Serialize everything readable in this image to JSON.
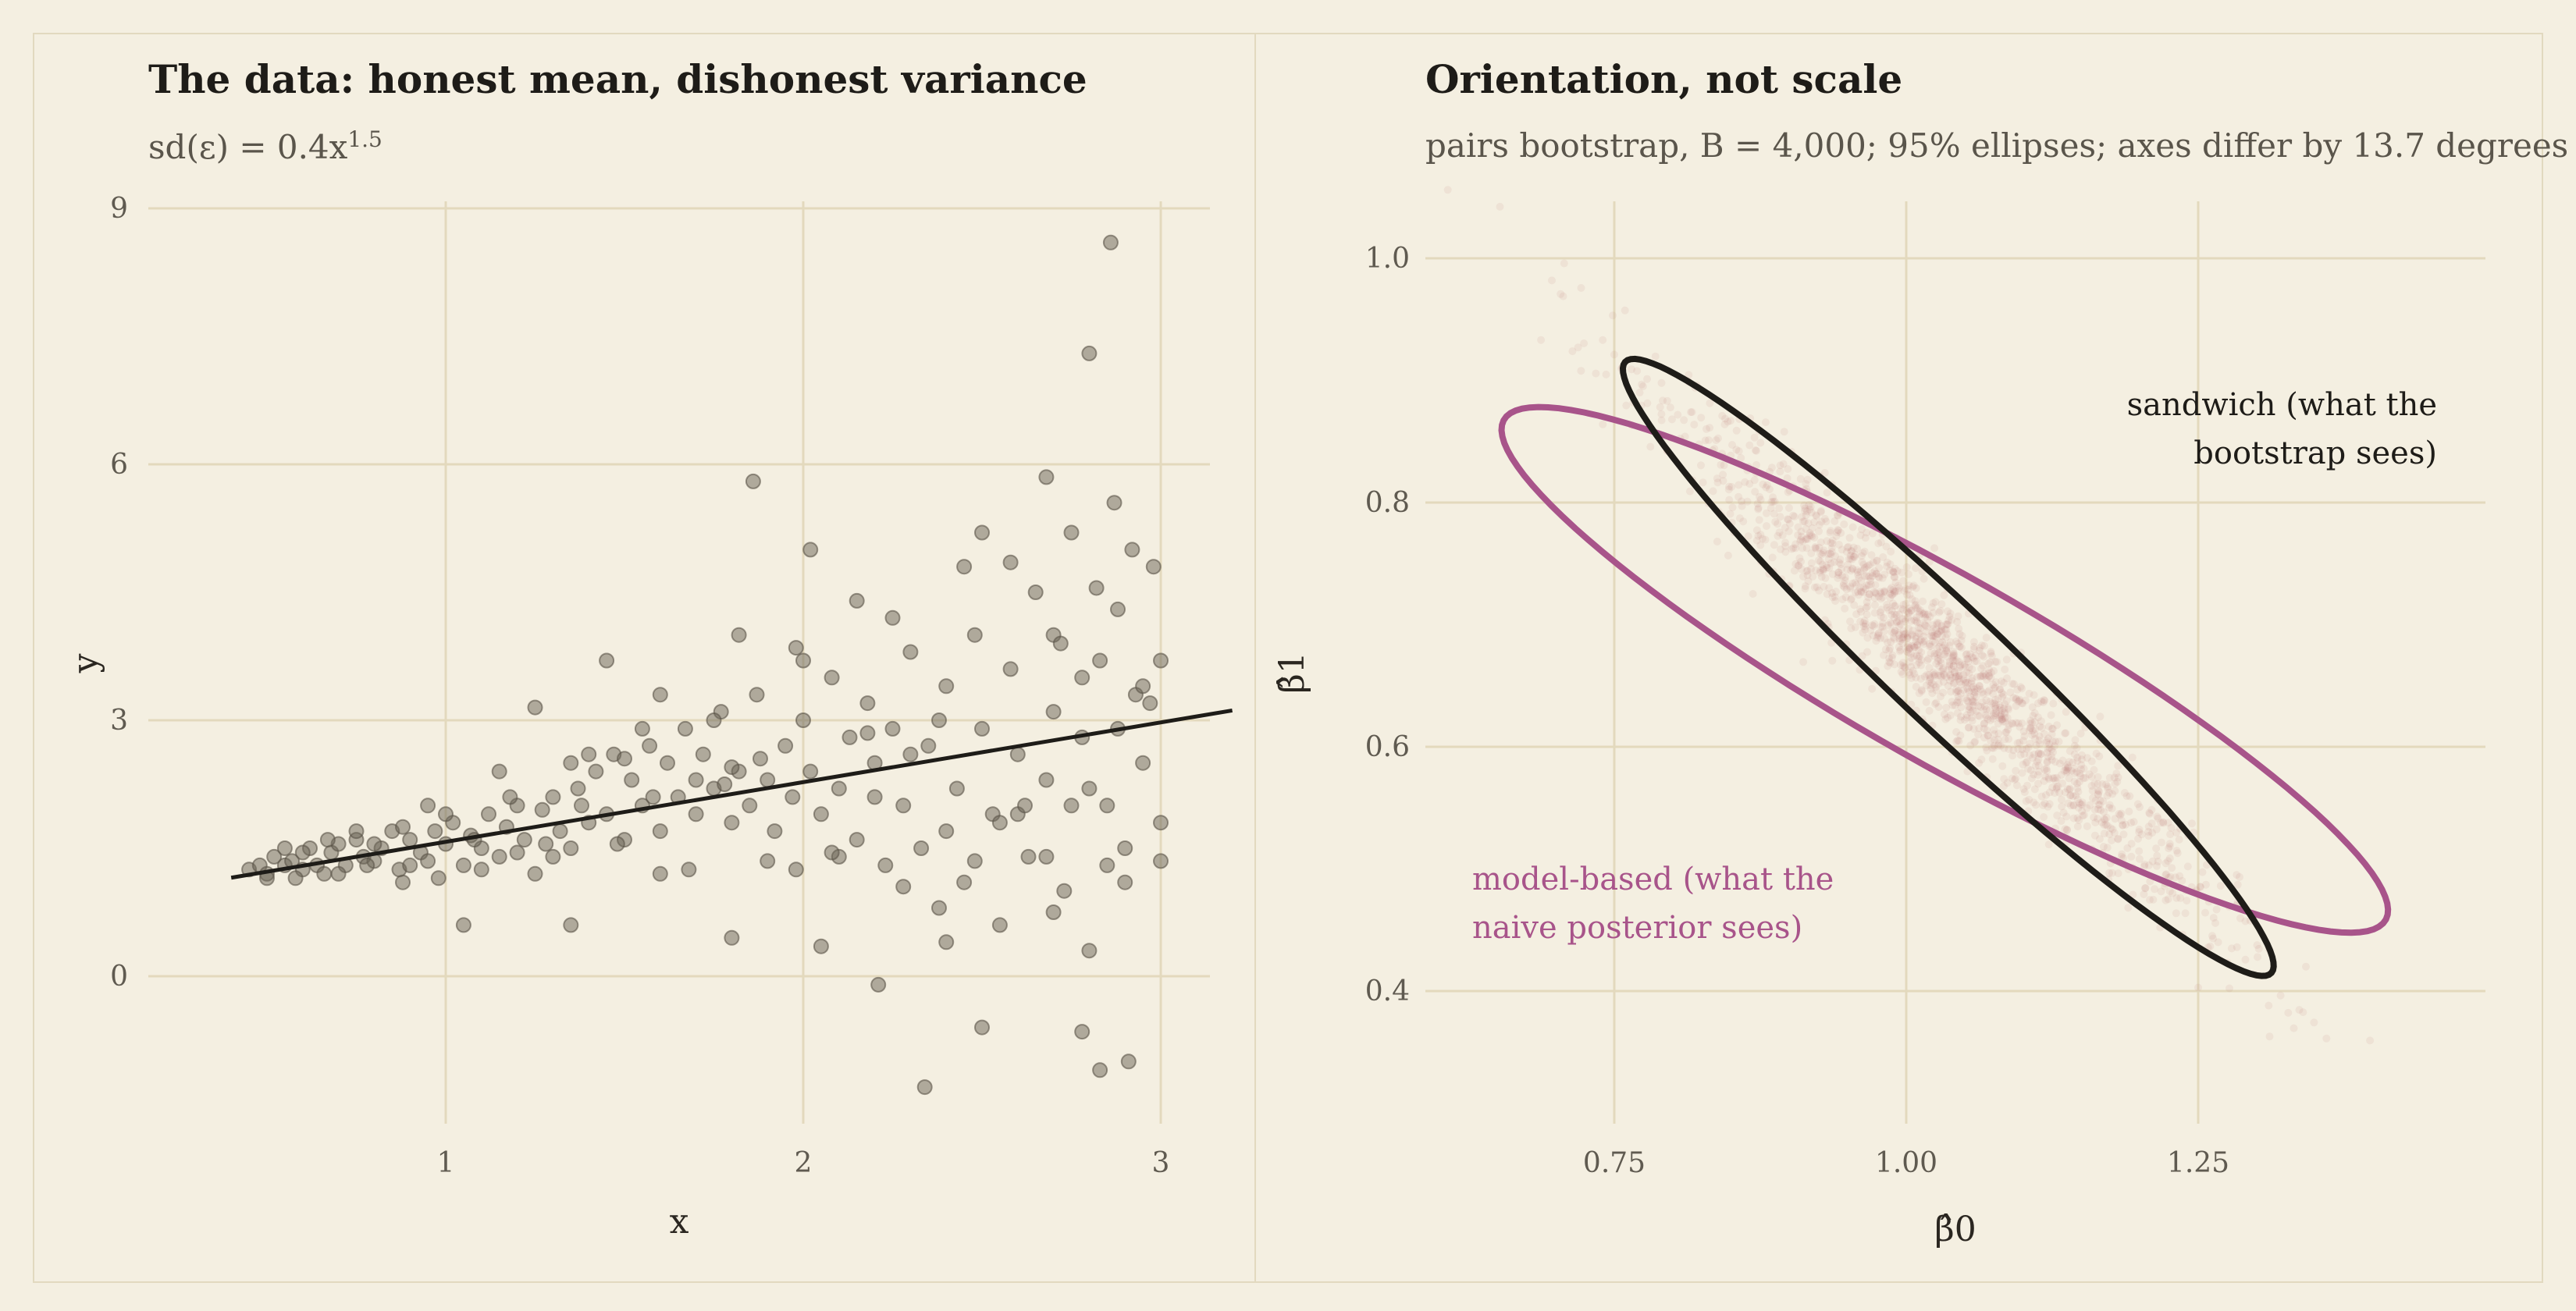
{
  "colors": {
    "background": "#f4efe1",
    "grid": "#e3d9bd",
    "points_left": "#6a6355",
    "fit_line": "#1e1c18",
    "bootstrap_points": "#b06068",
    "sandwich_ellipse": "#1e1c18",
    "model_ellipse": "#a8548a"
  },
  "left_panel": {
    "title": "The data: honest mean, dishonest variance",
    "subtitle_main": "sd(ε) = 0.4x",
    "subtitle_exp": "1.5"
  },
  "right_panel": {
    "title": "Orientation, not scale",
    "subtitle": "pairs bootstrap, B = 4,000; 95% ellipses; axes differ by 13.7 degrees",
    "annotation_sandwich_line1": "sandwich (what the",
    "annotation_sandwich_line2": "bootstrap sees)",
    "annotation_model_line1": "model-based (what the",
    "annotation_model_line2": "naive posterior sees)"
  },
  "chart_data": [
    {
      "type": "scatter",
      "xlabel": "x",
      "ylabel": "y",
      "xlim": [
        0.4,
        3.2
      ],
      "ylim": [
        -2.0,
        9.2
      ],
      "xticks": [
        "1",
        "2",
        "3"
      ],
      "yticks": [
        "0",
        "3",
        "6",
        "9"
      ],
      "grid": true,
      "fit_line": {
        "intercept": 0.875,
        "slope": 0.7
      },
      "points": [
        [
          0.45,
          1.25
        ],
        [
          0.48,
          1.3
        ],
        [
          0.5,
          1.2
        ],
        [
          0.52,
          1.4
        ],
        [
          0.55,
          1.3
        ],
        [
          0.57,
          1.35
        ],
        [
          0.6,
          1.25
        ],
        [
          0.62,
          1.5
        ],
        [
          0.64,
          1.3
        ],
        [
          0.66,
          1.2
        ],
        [
          0.68,
          1.45
        ],
        [
          0.7,
          1.55
        ],
        [
          0.72,
          1.3
        ],
        [
          0.75,
          1.6
        ],
        [
          0.77,
          1.4
        ],
        [
          0.8,
          1.35
        ],
        [
          0.82,
          1.5
        ],
        [
          0.85,
          1.7
        ],
        [
          0.87,
          1.25
        ],
        [
          0.88,
          1.1
        ],
        [
          0.9,
          1.6
        ],
        [
          0.93,
          1.45
        ],
        [
          0.95,
          1.35
        ],
        [
          0.97,
          1.7
        ],
        [
          1.0,
          1.55
        ],
        [
          1.02,
          1.8
        ],
        [
          1.05,
          1.3
        ],
        [
          1.07,
          1.65
        ],
        [
          1.1,
          1.5
        ],
        [
          1.12,
          1.9
        ],
        [
          1.15,
          1.4
        ],
        [
          1.17,
          1.75
        ],
        [
          1.2,
          2.0
        ],
        [
          1.22,
          1.6
        ],
        [
          1.25,
          1.2
        ],
        [
          1.27,
          1.95
        ],
        [
          1.3,
          2.1
        ],
        [
          1.32,
          1.7
        ],
        [
          1.35,
          1.5
        ],
        [
          1.37,
          2.2
        ],
        [
          1.4,
          1.8
        ],
        [
          1.42,
          2.4
        ],
        [
          1.45,
          1.9
        ],
        [
          1.47,
          2.6
        ],
        [
          1.5,
          1.6
        ],
        [
          1.52,
          2.3
        ],
        [
          1.55,
          2.0
        ],
        [
          1.57,
          2.7
        ],
        [
          1.6,
          1.7
        ],
        [
          1.62,
          2.5
        ],
        [
          1.65,
          2.1
        ],
        [
          1.67,
          2.9
        ],
        [
          1.7,
          1.9
        ],
        [
          1.72,
          2.6
        ],
        [
          1.75,
          2.2
        ],
        [
          1.77,
          3.1
        ],
        [
          1.8,
          1.8
        ],
        [
          1.82,
          2.4
        ],
        [
          1.85,
          2.0
        ],
        [
          1.87,
          3.3
        ],
        [
          1.9,
          2.3
        ],
        [
          1.92,
          1.7
        ],
        [
          1.95,
          2.7
        ],
        [
          1.97,
          2.1
        ],
        [
          2.0,
          3.0
        ],
        [
          2.02,
          2.4
        ],
        [
          2.05,
          1.9
        ],
        [
          2.08,
          3.5
        ],
        [
          2.1,
          2.2
        ],
        [
          2.13,
          2.8
        ],
        [
          2.15,
          1.6
        ],
        [
          2.18,
          3.2
        ],
        [
          2.2,
          2.5
        ],
        [
          2.23,
          1.3
        ],
        [
          2.25,
          2.9
        ],
        [
          2.28,
          2.0
        ],
        [
          2.3,
          3.8
        ],
        [
          2.33,
          1.5
        ],
        [
          2.35,
          2.7
        ],
        [
          2.38,
          0.8
        ],
        [
          2.4,
          3.4
        ],
        [
          2.43,
          2.2
        ],
        [
          2.45,
          1.1
        ],
        [
          2.48,
          4.0
        ],
        [
          2.5,
          2.9
        ],
        [
          2.53,
          1.9
        ],
        [
          2.55,
          0.6
        ],
        [
          2.58,
          3.6
        ],
        [
          2.6,
          2.6
        ],
        [
          2.63,
          1.4
        ],
        [
          2.65,
          4.5
        ],
        [
          2.68,
          2.3
        ],
        [
          2.7,
          3.1
        ],
        [
          2.73,
          1.0
        ],
        [
          2.75,
          5.2
        ],
        [
          2.78,
          2.8
        ],
        [
          2.8,
          0.3
        ],
        [
          2.83,
          3.7
        ],
        [
          2.85,
          2.0
        ],
        [
          2.88,
          4.3
        ],
        [
          2.9,
          1.5
        ],
        [
          2.93,
          3.3
        ],
        [
          2.95,
          2.5
        ],
        [
          2.98,
          4.8
        ],
        [
          3.0,
          1.8
        ],
        [
          0.5,
          1.15
        ],
        [
          0.6,
          1.45
        ],
        [
          0.7,
          1.2
        ],
        [
          0.8,
          1.55
        ],
        [
          0.9,
          1.3
        ],
        [
          1.0,
          1.9
        ],
        [
          1.1,
          1.25
        ],
        [
          1.2,
          1.45
        ],
        [
          1.3,
          1.4
        ],
        [
          1.4,
          2.6
        ],
        [
          1.5,
          2.55
        ],
        [
          1.6,
          1.2
        ],
        [
          1.7,
          2.3
        ],
        [
          1.8,
          2.45
        ],
        [
          1.9,
          1.35
        ],
        [
          2.0,
          3.7
        ],
        [
          2.1,
          1.4
        ],
        [
          2.2,
          2.1
        ],
        [
          2.3,
          2.6
        ],
        [
          2.4,
          1.7
        ],
        [
          2.5,
          5.2
        ],
        [
          2.6,
          1.9
        ],
        [
          2.7,
          4.0
        ],
        [
          2.8,
          2.2
        ],
        [
          2.9,
          1.1
        ],
        [
          1.86,
          5.8
        ],
        [
          2.02,
          5.0
        ],
        [
          2.21,
          -0.1
        ],
        [
          2.34,
          -1.3
        ],
        [
          2.5,
          -0.6
        ],
        [
          2.78,
          -0.65
        ],
        [
          2.83,
          -1.1
        ],
        [
          2.91,
          -1.0
        ],
        [
          2.8,
          7.3
        ],
        [
          2.86,
          8.6
        ],
        [
          2.68,
          5.85
        ],
        [
          2.87,
          5.55
        ],
        [
          2.92,
          5.0
        ],
        [
          2.82,
          4.55
        ],
        [
          1.45,
          3.7
        ],
        [
          1.6,
          3.3
        ],
        [
          1.82,
          4.0
        ],
        [
          1.98,
          3.85
        ],
        [
          2.15,
          4.4
        ],
        [
          1.05,
          0.6
        ],
        [
          1.25,
          3.15
        ],
        [
          1.8,
          0.45
        ],
        [
          2.05,
          0.35
        ],
        [
          2.4,
          0.4
        ],
        [
          2.7,
          0.75
        ],
        [
          1.35,
          0.6
        ],
        [
          0.55,
          1.5
        ],
        [
          0.75,
          1.7
        ],
        [
          0.95,
          2.0
        ],
        [
          1.15,
          2.4
        ],
        [
          1.35,
          2.5
        ],
        [
          1.55,
          2.9
        ],
        [
          1.75,
          3.0
        ],
        [
          2.25,
          4.2
        ],
        [
          2.45,
          4.8
        ],
        [
          2.55,
          1.8
        ],
        [
          2.62,
          2.0
        ],
        [
          2.72,
          3.9
        ],
        [
          2.75,
          2.0
        ],
        [
          2.85,
          1.3
        ],
        [
          2.95,
          3.4
        ],
        [
          3.0,
          3.7
        ],
        [
          3.0,
          1.35
        ],
        [
          2.97,
          3.2
        ],
        [
          0.58,
          1.15
        ],
        [
          0.67,
          1.6
        ],
        [
          0.78,
          1.3
        ],
        [
          0.88,
          1.75
        ],
        [
          0.98,
          1.15
        ],
        [
          1.08,
          1.6
        ],
        [
          1.18,
          2.1
        ],
        [
          1.28,
          1.55
        ],
        [
          1.38,
          2.0
        ],
        [
          1.48,
          1.55
        ],
        [
          1.58,
          2.1
        ],
        [
          1.68,
          1.25
        ],
        [
          1.78,
          2.25
        ],
        [
          1.88,
          2.55
        ],
        [
          1.98,
          1.25
        ],
        [
          2.08,
          1.45
        ],
        [
          2.18,
          2.85
        ],
        [
          2.28,
          1.05
        ],
        [
          2.38,
          3.0
        ],
        [
          2.48,
          1.35
        ],
        [
          2.58,
          4.85
        ],
        [
          2.68,
          1.4
        ],
        [
          2.78,
          3.5
        ],
        [
          2.88,
          2.9
        ]
      ]
    },
    {
      "type": "scatter",
      "xlabel": "β̂0",
      "ylabel": "β̂1",
      "xlim": [
        0.62,
        1.48
      ],
      "ylim": [
        0.28,
        1.05
      ],
      "xticks": [
        "0.75",
        "1.00",
        "1.25"
      ],
      "yticks": [
        "0.4",
        "0.6",
        "0.8",
        "1.0"
      ],
      "grid": true,
      "bootstrap": {
        "B": 4000,
        "center": [
          1.03,
          0.67
        ],
        "points_drawn": 1600
      },
      "ellipses": [
        {
          "name": "sandwich (what the bootstrap sees)",
          "center": [
            1.036,
            0.665
          ],
          "semi_major": 0.373,
          "semi_minor": 0.0485,
          "angle_deg": -42.1
        },
        {
          "name": "model-based (what the naive posterior sees)",
          "center": [
            1.033,
            0.663
          ],
          "semi_major": 0.4295,
          "semi_minor": 0.077,
          "angle_deg": -28.4
        }
      ]
    }
  ]
}
